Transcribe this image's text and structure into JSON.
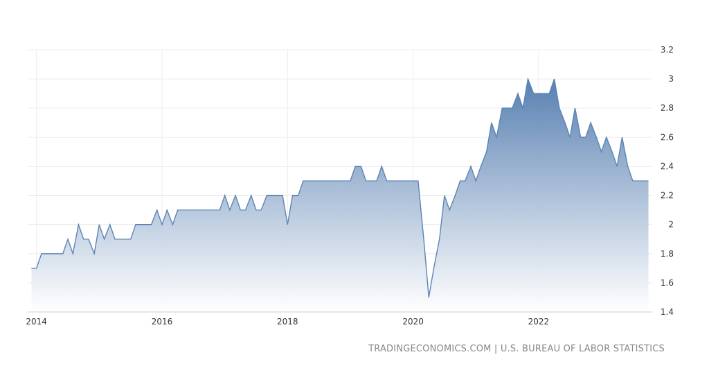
{
  "source": "TRADINGECONOMICS.COM | U.S. BUREAU OF LABOR STATISTICS",
  "colors": {
    "line": "#5b84b5",
    "fill_top": "#4f79ad",
    "fill_bottom": "#ffffff"
  },
  "chart_data": {
    "type": "area",
    "title": "",
    "xlabel": "",
    "ylabel": "",
    "xlim": [
      2013.86,
      2023.81
    ],
    "ylim": [
      1.4,
      3.2
    ],
    "y_ticks": [
      "1.4",
      "1.6",
      "1.8",
      "2",
      "2.2",
      "2.4",
      "2.6",
      "2.8",
      "3",
      "3.2"
    ],
    "x_ticks": [
      "2014",
      "2016",
      "2018",
      "2020",
      "2022"
    ],
    "grid": true,
    "legend": "none",
    "y_axis_side": "right",
    "series": [
      {
        "x": [
          2013.92,
          2014.0,
          2014.08,
          2014.17,
          2014.25,
          2014.33,
          2014.42,
          2014.5,
          2014.58,
          2014.67,
          2014.75,
          2014.83,
          2014.92,
          2015.0,
          2015.08,
          2015.17,
          2015.25,
          2015.33,
          2015.42,
          2015.5,
          2015.58,
          2015.67,
          2015.75,
          2015.83,
          2015.92,
          2016.0,
          2016.08,
          2016.17,
          2016.25,
          2016.33,
          2016.42,
          2016.5,
          2016.58,
          2016.67,
          2016.75,
          2016.83,
          2016.92,
          2017.0,
          2017.08,
          2017.17,
          2017.25,
          2017.33,
          2017.42,
          2017.5,
          2017.58,
          2017.67,
          2017.75,
          2017.83,
          2017.92,
          2018.0,
          2018.08,
          2018.17,
          2018.25,
          2018.33,
          2018.42,
          2018.5,
          2018.58,
          2018.67,
          2018.75,
          2018.83,
          2018.92,
          2019.0,
          2019.08,
          2019.17,
          2019.25,
          2019.33,
          2019.42,
          2019.5,
          2019.58,
          2019.67,
          2019.75,
          2019.83,
          2019.92,
          2020.0,
          2020.08,
          2020.17,
          2020.25,
          2020.33,
          2020.42,
          2020.5,
          2020.58,
          2020.67,
          2020.75,
          2020.83,
          2020.92,
          2021.0,
          2021.08,
          2021.17,
          2021.25,
          2021.33,
          2021.42,
          2021.5,
          2021.58,
          2021.67,
          2021.75,
          2021.83,
          2021.92,
          2022.0,
          2022.08,
          2022.17,
          2022.25,
          2022.33,
          2022.42,
          2022.5,
          2022.58,
          2022.67,
          2022.75,
          2022.83,
          2022.92,
          2023.0,
          2023.08,
          2023.17,
          2023.25,
          2023.33,
          2023.42,
          2023.5,
          2023.58,
          2023.67,
          2023.75
        ],
        "values": [
          1.7,
          1.7,
          1.8,
          1.8,
          1.8,
          1.8,
          1.8,
          1.9,
          1.8,
          2.0,
          1.9,
          1.9,
          1.8,
          2.0,
          1.9,
          2.0,
          1.9,
          1.9,
          1.9,
          1.9,
          2.0,
          2.0,
          2.0,
          2.0,
          2.1,
          2.0,
          2.1,
          2.0,
          2.1,
          2.1,
          2.1,
          2.1,
          2.1,
          2.1,
          2.1,
          2.1,
          2.1,
          2.2,
          2.1,
          2.2,
          2.1,
          2.1,
          2.2,
          2.1,
          2.1,
          2.2,
          2.2,
          2.2,
          2.2,
          2.0,
          2.2,
          2.2,
          2.3,
          2.3,
          2.3,
          2.3,
          2.3,
          2.3,
          2.3,
          2.3,
          2.3,
          2.3,
          2.4,
          2.4,
          2.3,
          2.3,
          2.3,
          2.4,
          2.3,
          2.3,
          2.3,
          2.3,
          2.3,
          2.3,
          2.3,
          1.9,
          1.5,
          1.7,
          1.9,
          2.2,
          2.1,
          2.2,
          2.3,
          2.3,
          2.4,
          2.3,
          2.4,
          2.5,
          2.7,
          2.6,
          2.8,
          2.8,
          2.8,
          2.9,
          2.8,
          3.0,
          2.9,
          2.9,
          2.9,
          2.9,
          3.0,
          2.8,
          2.7,
          2.6,
          2.8,
          2.6,
          2.6,
          2.7,
          2.6,
          2.5,
          2.6,
          2.5,
          2.4,
          2.6,
          2.4,
          2.3,
          2.3,
          2.3,
          2.3
        ]
      }
    ]
  }
}
